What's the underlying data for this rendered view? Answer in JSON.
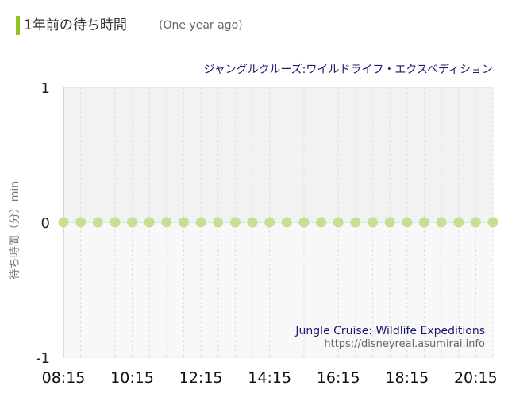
{
  "header": {
    "title": "1年前の待ち時間",
    "subtitle": "(One year ago)"
  },
  "colors": {
    "accent": "#8fc31f",
    "marker": "#c6e093",
    "plot_upper": "#f2f2f2",
    "plot_lower": "#f8f8f8",
    "attraction_title": "#1a1a6e",
    "watermark_gray": "#666666"
  },
  "chart_data": {
    "type": "line",
    "title": "ジャングルクルーズ:ワイルドライフ・エクスペディション",
    "ylabel": "待ち時間（分）min",
    "xlabel": "",
    "ylim": [
      -1,
      1
    ],
    "yticks": [
      "1",
      "0",
      "-1"
    ],
    "xticks": [
      "08:15",
      "10:15",
      "12:15",
      "14:15",
      "16:15",
      "18:15",
      "20:15"
    ],
    "grid": true,
    "x": [
      "08:15",
      "08:45",
      "09:15",
      "09:45",
      "10:15",
      "10:45",
      "11:15",
      "11:45",
      "12:15",
      "12:45",
      "13:15",
      "13:45",
      "14:15",
      "14:45",
      "15:15",
      "15:45",
      "16:15",
      "16:45",
      "17:15",
      "17:45",
      "18:15",
      "18:45",
      "19:15",
      "19:45",
      "20:15",
      "20:45"
    ],
    "series": [
      {
        "values": [
          0,
          0,
          0,
          0,
          0,
          0,
          0,
          0,
          0,
          0,
          0,
          0,
          0,
          0,
          0,
          0,
          0,
          0,
          0,
          0,
          0,
          0,
          0,
          0,
          0,
          0
        ]
      }
    ],
    "annotations": {
      "name_en": "Jungle Cruise: Wildlife Expeditions",
      "url": "https://disneyreal.asumirai.info"
    }
  }
}
